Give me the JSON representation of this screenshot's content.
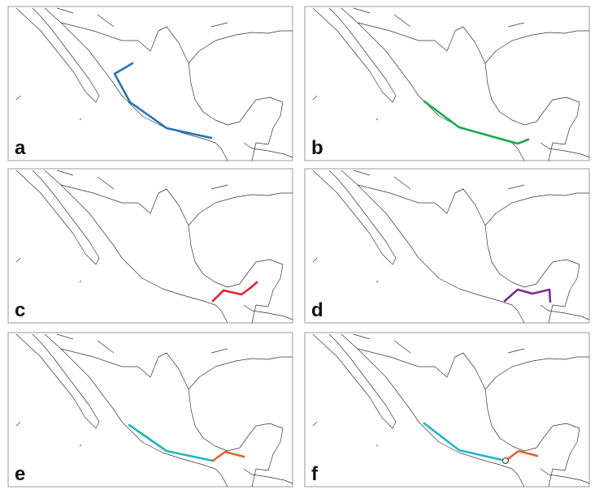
{
  "panels": [
    {
      "label": "a",
      "routes": [
        {
          "color": "#2673b8"
        }
      ]
    },
    {
      "label": "b",
      "routes": [
        {
          "color": "#1aaa4b"
        }
      ]
    },
    {
      "label": "c",
      "routes": [
        {
          "color": "#e8202a"
        }
      ]
    },
    {
      "label": "d",
      "routes": [
        {
          "color": "#7b2d8e"
        }
      ]
    },
    {
      "label": "e",
      "routes": [
        {
          "color": "#1fb5c4"
        },
        {
          "color": "#e0652a"
        }
      ]
    },
    {
      "label": "f",
      "routes": [
        {
          "color": "#1fb5c4"
        },
        {
          "color": "#e0652a"
        }
      ]
    }
  ]
}
